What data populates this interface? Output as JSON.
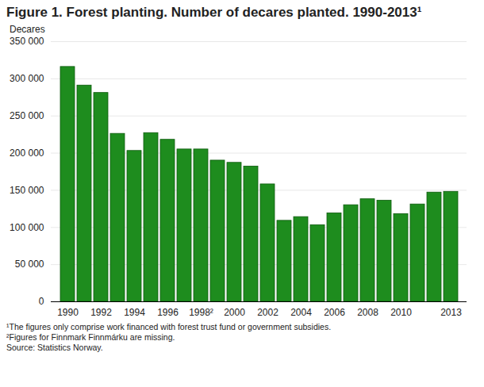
{
  "chart_data": {
    "type": "bar",
    "title": "Figure 1. Forest planting. Number of decares planted. 1990-2013¹",
    "y_label": "Decares",
    "categories": [
      "1990",
      null,
      "1992",
      null,
      "1994",
      null,
      "1996",
      null,
      "1998²",
      null,
      "2000",
      null,
      "2002",
      null,
      "2004",
      null,
      "2006",
      null,
      "2008",
      null,
      "2010",
      null,
      null,
      "2013"
    ],
    "values": [
      316000,
      291000,
      281000,
      226000,
      203000,
      227000,
      218000,
      205000,
      205000,
      190000,
      187000,
      182000,
      158000,
      109000,
      114000,
      103000,
      119000,
      130000,
      138000,
      136000,
      118000,
      131000,
      147000,
      148000
    ],
    "color": "#1e8c1e",
    "ylim": [
      0,
      350000
    ],
    "yticks": [
      0,
      {
        "value": 50000,
        "label": "50 000"
      },
      {
        "value": 100000,
        "label": "100 000"
      },
      {
        "value": 150000,
        "label": "150 000"
      },
      {
        "value": 200000,
        "label": "200 000"
      },
      {
        "value": 250000,
        "label": "250 000"
      },
      {
        "value": 300000,
        "label": "300 000"
      },
      {
        "value": 350000,
        "label": "350 000"
      }
    ],
    "grid": true,
    "footnotes": [
      "¹The figures only comprise work financed with forest trust fund or government subsidies.",
      "²Figures for Finnmark Finnmárku are missing."
    ],
    "source": "Source: Statistics Norway."
  }
}
